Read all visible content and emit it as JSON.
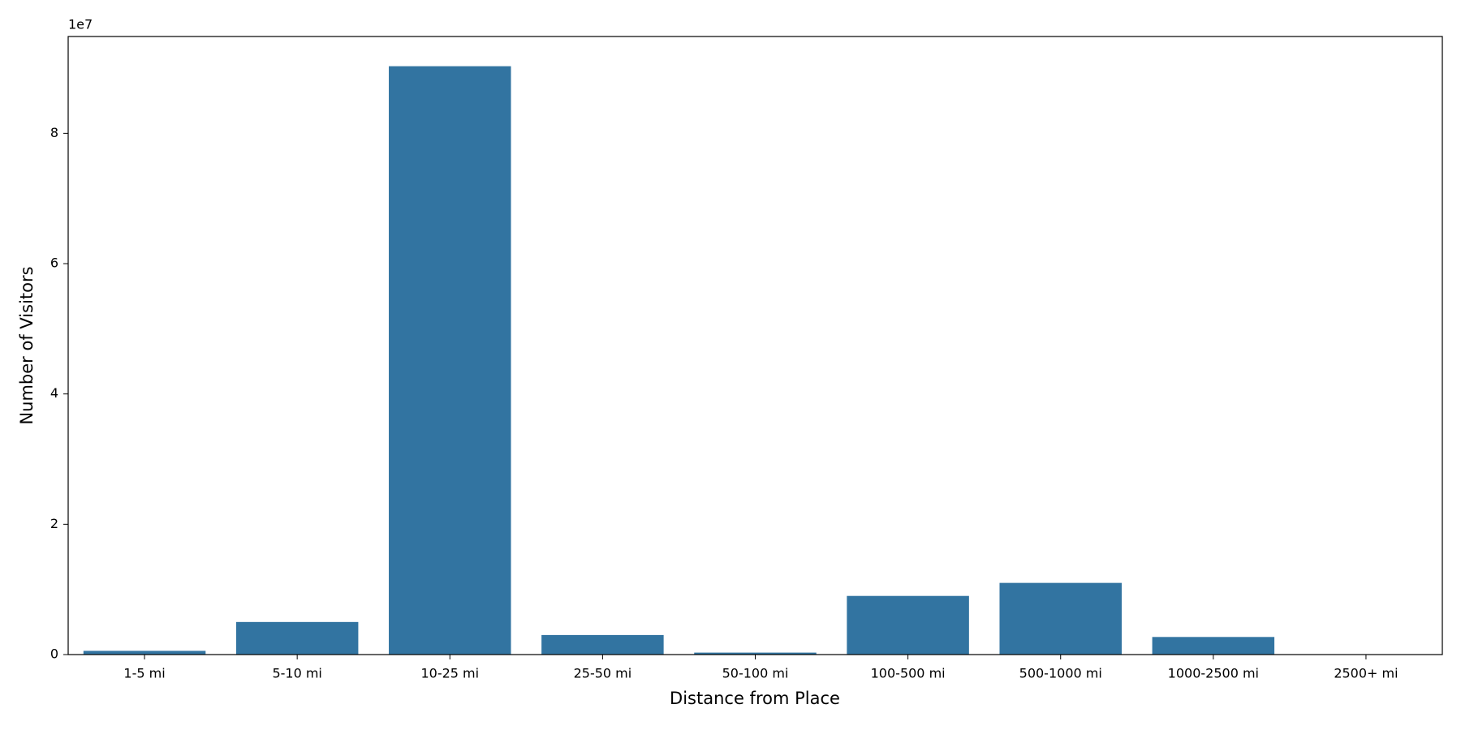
{
  "chart_data": {
    "type": "bar",
    "x_label": "Distance from Place",
    "y_label": "Number of Visitors",
    "y_offset_text": "1e7",
    "categories": [
      "1-5 mi",
      "5-10 mi",
      "10-25 mi",
      "25-50 mi",
      "50-100 mi",
      "100-500 mi",
      "500-1000 mi",
      "1000-2500 mi",
      "2500+ mi"
    ],
    "values": [
      570000,
      5000000,
      90300000,
      3000000,
      300000,
      9000000,
      11000000,
      2700000,
      10000
    ],
    "color": "#3274a1",
    "ylim": [
      0,
      94860000
    ],
    "yticks": [
      0,
      {
        "value": 20000000,
        "label": "2"
      },
      {
        "value": 40000000,
        "label": "4"
      },
      {
        "value": 60000000,
        "label": "6"
      },
      {
        "value": 80000000,
        "label": "8"
      }
    ],
    "grid": false
  }
}
